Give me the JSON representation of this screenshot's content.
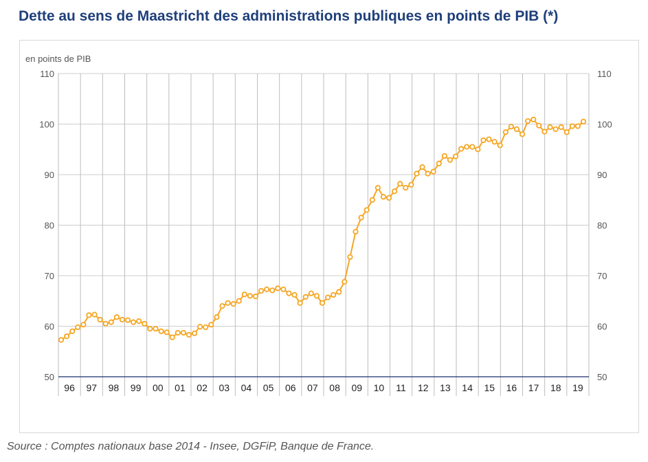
{
  "title": "Dette au sens de Maastricht des administrations publiques en points de PIB (*)",
  "source": "Source : Comptes nationaux base 2014 - Insee, DGFiP, Banque de France.",
  "colors": {
    "line": "#f5a623",
    "grid": "#cccccc",
    "axis": "#1a2a6c",
    "title": "#1f3f7a"
  },
  "chart_data": {
    "type": "line",
    "ylabel": "en points de PIB",
    "ylim": [
      50,
      110
    ],
    "yticks": [
      50,
      60,
      70,
      80,
      90,
      100,
      110
    ],
    "year_labels": [
      "96",
      "97",
      "98",
      "99",
      "00",
      "01",
      "02",
      "03",
      "04",
      "05",
      "06",
      "07",
      "08",
      "09",
      "10",
      "11",
      "12",
      "13",
      "14",
      "15",
      "16",
      "17",
      "18",
      "19"
    ],
    "grid": true,
    "series": [
      {
        "values": [
          57.3,
          58.0,
          59.0,
          59.8,
          60.3,
          62.2,
          62.3,
          61.3,
          60.5,
          60.8,
          61.8,
          61.3,
          61.2,
          60.8,
          61.0,
          60.5,
          59.5,
          59.5,
          59.0,
          58.8,
          57.8,
          58.7,
          58.7,
          58.3,
          58.6,
          59.9,
          59.8,
          60.3,
          61.8,
          64.0,
          64.6,
          64.4,
          65.0,
          66.3,
          66.0,
          65.9,
          67.0,
          67.3,
          67.1,
          67.5,
          67.3,
          66.5,
          66.2,
          64.6,
          65.8,
          66.5,
          66.0,
          64.6,
          65.7,
          66.2,
          66.8,
          68.8,
          73.7,
          78.7,
          81.5,
          83.0,
          85.0,
          87.4,
          85.6,
          85.4,
          86.7,
          88.2,
          87.4,
          88.0,
          90.2,
          91.5,
          90.2,
          90.6,
          92.2,
          93.7,
          92.9,
          93.6,
          95.1,
          95.5,
          95.5,
          95.0,
          96.8,
          97.0,
          96.5,
          95.8,
          98.4,
          99.5,
          99.0,
          98.0,
          100.6,
          100.9,
          99.7,
          98.5,
          99.4,
          99.0,
          99.4,
          98.4,
          99.6,
          99.6,
          100.5
        ]
      }
    ]
  }
}
